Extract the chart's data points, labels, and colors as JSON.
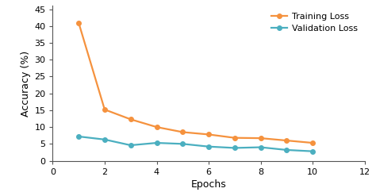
{
  "epochs": [
    1,
    2,
    3,
    4,
    5,
    6,
    7,
    8,
    9,
    10
  ],
  "training_loss": [
    41.0,
    15.2,
    12.3,
    10.0,
    8.5,
    7.8,
    6.8,
    6.7,
    6.0,
    5.3
  ],
  "validation_loss": [
    7.2,
    6.3,
    4.6,
    5.3,
    5.0,
    4.2,
    3.8,
    4.0,
    3.2,
    2.8
  ],
  "training_color": "#F5923E",
  "validation_color": "#4BAFC0",
  "xlabel": "Epochs",
  "ylabel": "Accuracy (%)",
  "training_label": "Training Loss",
  "validation_label": "Validation Loss",
  "xlim": [
    0,
    12
  ],
  "ylim": [
    0,
    46
  ],
  "xticks": [
    0,
    2,
    4,
    6,
    8,
    10,
    12
  ],
  "yticks": [
    0,
    5,
    10,
    15,
    20,
    25,
    30,
    35,
    40,
    45
  ],
  "background_color": "#ffffff",
  "marker": "o",
  "marker_size": 4,
  "linewidth": 1.6,
  "legend_fontsize": 8,
  "axis_label_fontsize": 9,
  "tick_fontsize": 8,
  "spine_color": "#555555"
}
